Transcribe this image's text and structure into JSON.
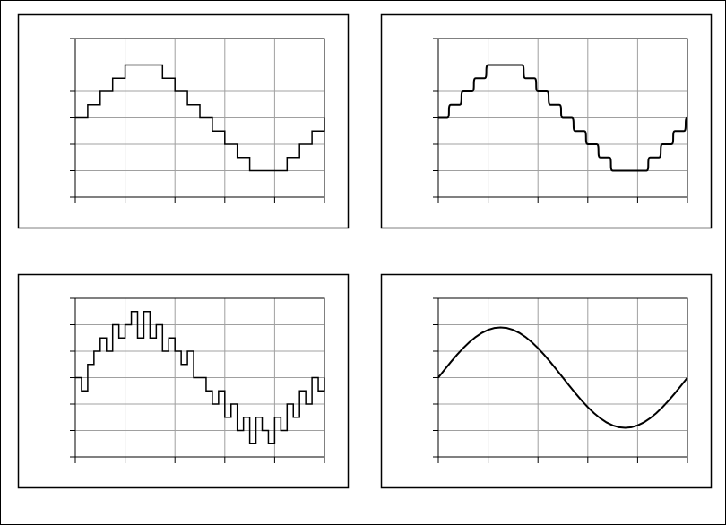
{
  "chart_data": [
    {
      "type": "line",
      "step": "sharp",
      "color": "#000000",
      "grid": true,
      "xlim": [
        0,
        5
      ],
      "ylim": [
        -3,
        3
      ],
      "xticks": [
        0,
        1,
        2,
        3,
        4,
        5
      ],
      "yticks": [
        -3,
        -2,
        -1,
        0,
        1,
        2,
        3
      ],
      "x": [
        0,
        0.25,
        0.5,
        0.75,
        1,
        1.25,
        1.5,
        1.75,
        2,
        2.25,
        2.5,
        2.75,
        3,
        3.25,
        3.5,
        3.75,
        4,
        4.25,
        4.5,
        4.75,
        5
      ],
      "values": [
        0,
        0.5,
        1,
        1.5,
        2,
        2,
        2,
        1.5,
        1,
        0.5,
        0,
        -0.5,
        -1,
        -1.5,
        -2,
        -2,
        -2,
        -1.5,
        -1,
        -0.5,
        0
      ]
    },
    {
      "type": "line",
      "step": "smooth",
      "color": "#000000",
      "grid": true,
      "xlim": [
        0,
        5
      ],
      "ylim": [
        -3,
        3
      ],
      "xticks": [
        0,
        1,
        2,
        3,
        4,
        5
      ],
      "yticks": [
        -3,
        -2,
        -1,
        0,
        1,
        2,
        3
      ],
      "x": [
        0,
        0.25,
        0.5,
        0.75,
        1,
        1.25,
        1.5,
        1.75,
        2,
        2.25,
        2.5,
        2.75,
        3,
        3.25,
        3.5,
        3.75,
        4,
        4.25,
        4.5,
        4.75,
        5
      ],
      "values": [
        0,
        0.5,
        1,
        1.5,
        2,
        2,
        2,
        1.5,
        1,
        0.5,
        0,
        -0.5,
        -1,
        -1.5,
        -2,
        -2,
        -2,
        -1.5,
        -1,
        -0.5,
        0
      ]
    },
    {
      "type": "line",
      "step": "sharp",
      "color": "#000000",
      "grid": true,
      "xlim": [
        0,
        5
      ],
      "ylim": [
        -3,
        3
      ],
      "xticks": [
        0,
        1,
        2,
        3,
        4,
        5
      ],
      "yticks": [
        -3,
        -2,
        -1,
        0,
        1,
        2,
        3
      ],
      "x": [
        0,
        0.125,
        0.25,
        0.375,
        0.5,
        0.625,
        0.75,
        0.875,
        1,
        1.125,
        1.25,
        1.375,
        1.5,
        1.625,
        1.75,
        1.875,
        2,
        2.125,
        2.25,
        2.375,
        2.5,
        2.625,
        2.75,
        2.875,
        3,
        3.125,
        3.25,
        3.375,
        3.5,
        3.625,
        3.75,
        3.875,
        4,
        4.125,
        4.25,
        4.375,
        4.5,
        4.625,
        4.75,
        4.875,
        5
      ],
      "values": [
        0,
        -0.5,
        0.5,
        1,
        1.5,
        1,
        2,
        1.5,
        2,
        2.5,
        1.5,
        2.5,
        1.5,
        2,
        1,
        1.5,
        1,
        0.5,
        1,
        0,
        0,
        -0.5,
        -1,
        -0.5,
        -1.5,
        -1,
        -2,
        -1.5,
        -2.5,
        -1.5,
        -2,
        -2.5,
        -1.5,
        -2,
        -1,
        -1.5,
        -0.5,
        -1,
        0,
        -0.5,
        0
      ]
    },
    {
      "type": "line",
      "step": "none",
      "color": "#000000",
      "grid": true,
      "xlim": [
        0,
        5
      ],
      "ylim": [
        -3,
        3
      ],
      "xticks": [
        0,
        1,
        2,
        3,
        4,
        5
      ],
      "yticks": [
        -3,
        -2,
        -1,
        0,
        1,
        2,
        3
      ],
      "x": [
        0,
        0.125,
        0.25,
        0.375,
        0.5,
        0.625,
        0.75,
        0.875,
        1,
        1.125,
        1.25,
        1.375,
        1.5,
        1.625,
        1.75,
        1.875,
        2,
        2.125,
        2.25,
        2.375,
        2.5,
        2.625,
        2.75,
        2.875,
        3,
        3.125,
        3.25,
        3.375,
        3.5,
        3.625,
        3.75,
        3.875,
        4,
        4.125,
        4.25,
        4.375,
        4.5,
        4.625,
        4.75,
        4.875,
        5
      ],
      "values": [
        0,
        0.297,
        0.587,
        0.863,
        1.117,
        1.344,
        1.537,
        1.693,
        1.807,
        1.877,
        1.9,
        1.877,
        1.807,
        1.693,
        1.537,
        1.344,
        1.117,
        0.863,
        0.587,
        0.297,
        0,
        -0.297,
        -0.587,
        -0.863,
        -1.117,
        -1.344,
        -1.537,
        -1.693,
        -1.807,
        -1.877,
        -1.9,
        -1.877,
        -1.807,
        -1.693,
        -1.537,
        -1.344,
        -1.117,
        -0.863,
        -0.587,
        -0.297,
        0
      ]
    }
  ]
}
